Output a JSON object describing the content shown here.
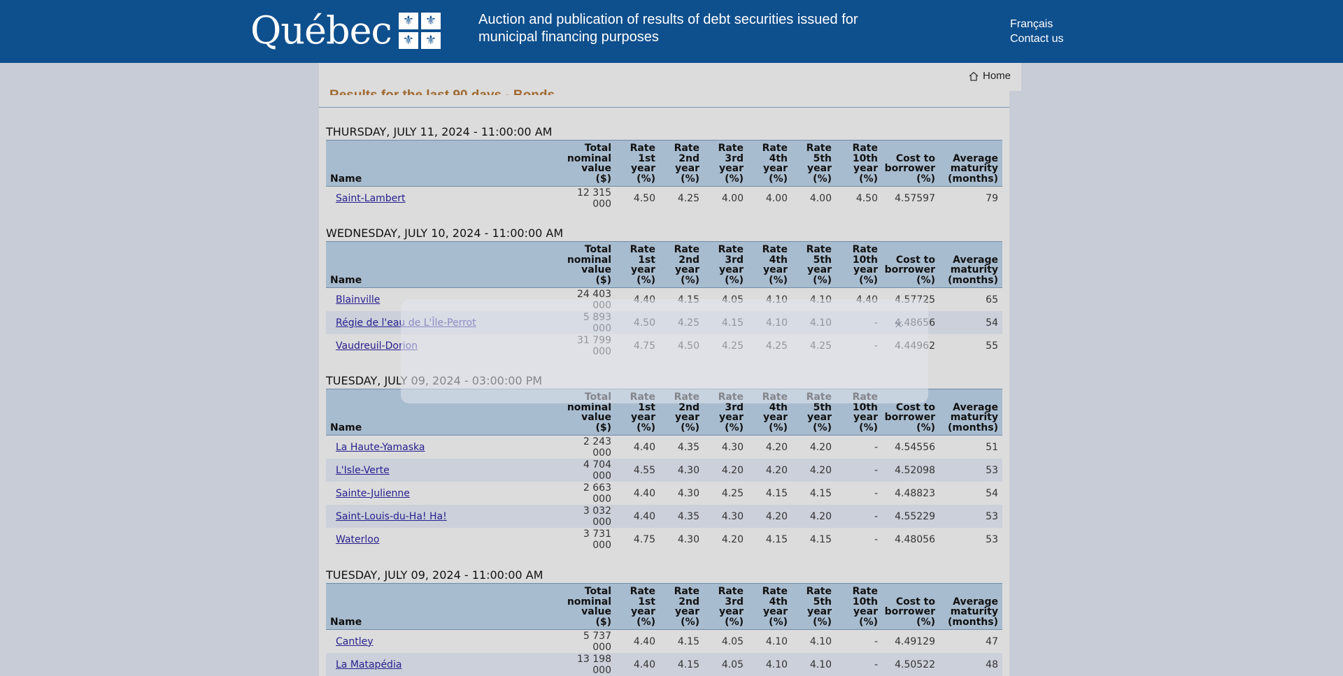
{
  "header": {
    "logo_text": "Québec",
    "fleur_glyph": "⚜",
    "title_line1": "Auction and publication of results of debt securities issued for",
    "title_line2": "municipal financing purposes",
    "links": [
      "Français",
      "Contact us"
    ],
    "bg_color": "#0e4f8d"
  },
  "nav": {
    "home_label": "Home",
    "home_icon": "home-icon"
  },
  "page": {
    "section_title": "Results for the last 90 days - Bonds"
  },
  "columns": [
    "Name",
    "Total nominal value ($)",
    "Rate 1st year (%)",
    "Rate 2nd year (%)",
    "Rate 3rd year (%)",
    "Rate 4th year (%)",
    "Rate 5th year (%)",
    "Rate 10th year (%)",
    "Cost to borrower (%)",
    "Average maturity (months)"
  ],
  "auctions": [
    {
      "date": "THURSDAY, JULY 11, 2024 - 11:00:00 AM",
      "rows": [
        [
          "Saint-Lambert",
          "12 315 000",
          "4.50",
          "4.25",
          "4.00",
          "4.00",
          "4.00",
          "4.50",
          "4.57597",
          "79"
        ]
      ]
    },
    {
      "date": "WEDNESDAY, JULY 10, 2024 - 11:00:00 AM",
      "rows": [
        [
          "Blainville",
          "24 403 000",
          "4.40",
          "4.15",
          "4.05",
          "4.10",
          "4.10",
          "4.40",
          "4.57725",
          "65"
        ],
        [
          "Régie de l'eau de L'Île-Perrot",
          "5 893 000",
          "4.50",
          "4.25",
          "4.15",
          "4.10",
          "4.10",
          "-",
          "4.48656",
          "54"
        ],
        [
          "Vaudreuil-Dorion",
          "31 799 000",
          "4.75",
          "4.50",
          "4.25",
          "4.25",
          "4.25",
          "-",
          "4.44962",
          "55"
        ]
      ]
    },
    {
      "date": "TUESDAY, JULY 09, 2024 - 03:00:00 PM",
      "rows": [
        [
          "La Haute-Yamaska",
          "2 243 000",
          "4.40",
          "4.35",
          "4.30",
          "4.20",
          "4.20",
          "-",
          "4.54556",
          "51"
        ],
        [
          "L'Isle-Verte",
          "4 704 000",
          "4.55",
          "4.30",
          "4.20",
          "4.20",
          "4.20",
          "-",
          "4.52098",
          "53"
        ],
        [
          "Sainte-Julienne",
          "2 663 000",
          "4.40",
          "4.30",
          "4.25",
          "4.15",
          "4.15",
          "-",
          "4.48823",
          "54"
        ],
        [
          "Saint-Louis-du-Ha! Ha!",
          "3 032 000",
          "4.40",
          "4.35",
          "4.30",
          "4.20",
          "4.20",
          "-",
          "4.55229",
          "53"
        ],
        [
          "Waterloo",
          "3 731 000",
          "4.75",
          "4.30",
          "4.20",
          "4.15",
          "4.15",
          "-",
          "4.48056",
          "53"
        ]
      ]
    },
    {
      "date": "TUESDAY, JULY 09, 2024 - 11:00:00 AM",
      "rows": [
        [
          "Cantley",
          "5 737 000",
          "4.40",
          "4.15",
          "4.05",
          "4.10",
          "4.10",
          "-",
          "4.49129",
          "47"
        ],
        [
          "La Matapédia",
          "13 198 000",
          "4.40",
          "4.15",
          "4.05",
          "4.10",
          "4.10",
          "-",
          "4.50522",
          "48"
        ]
      ]
    }
  ],
  "overlay": {
    "close_glyph": "×"
  }
}
